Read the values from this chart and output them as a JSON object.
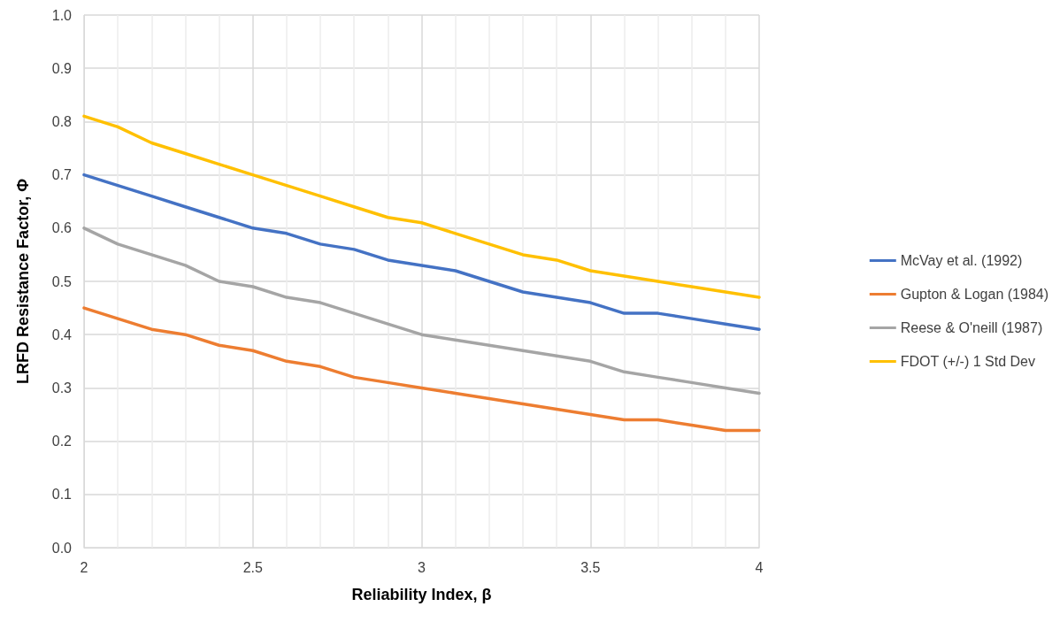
{
  "chart_data": {
    "type": "line",
    "xlabel": "Reliability Index, β",
    "ylabel": "LRFD Resistance Factor, Φ",
    "x": [
      2,
      2.1,
      2.2,
      2.3,
      2.4,
      2.5,
      2.6,
      2.7,
      2.8,
      2.9,
      3,
      3.1,
      3.2,
      3.3,
      3.4,
      3.5,
      3.6,
      3.7,
      3.8,
      3.9,
      4
    ],
    "series": [
      {
        "name": "McVay et al. (1992)",
        "color": "#4472c4",
        "values": [
          0.7,
          0.68,
          0.66,
          0.64,
          0.62,
          0.6,
          0.59,
          0.57,
          0.56,
          0.54,
          0.53,
          0.52,
          0.5,
          0.48,
          0.47,
          0.46,
          0.44,
          0.44,
          0.43,
          0.42,
          0.41
        ]
      },
      {
        "name": "Gupton & Logan (1984)",
        "color": "#ed7d31",
        "values": [
          0.45,
          0.43,
          0.41,
          0.4,
          0.38,
          0.37,
          0.35,
          0.34,
          0.32,
          0.31,
          0.3,
          0.29,
          0.28,
          0.27,
          0.26,
          0.25,
          0.24,
          0.24,
          0.23,
          0.22,
          0.22
        ]
      },
      {
        "name": "Reese & O'neill (1987)",
        "color": "#a5a5a5",
        "values": [
          0.6,
          0.57,
          0.55,
          0.53,
          0.5,
          0.49,
          0.47,
          0.46,
          0.44,
          0.42,
          0.4,
          0.39,
          0.38,
          0.37,
          0.36,
          0.35,
          0.33,
          0.32,
          0.31,
          0.3,
          0.29
        ]
      },
      {
        "name": "FDOT (+/-) 1 Std Dev",
        "color": "#ffc000",
        "values": [
          0.81,
          0.79,
          0.76,
          0.74,
          0.72,
          0.7,
          0.68,
          0.66,
          0.64,
          0.62,
          0.61,
          0.59,
          0.57,
          0.55,
          0.54,
          0.52,
          0.51,
          0.5,
          0.49,
          0.48,
          0.47
        ]
      }
    ],
    "xlim": [
      2,
      4
    ],
    "xticks": [
      2,
      2.5,
      3,
      3.5,
      4
    ],
    "ylim": [
      0,
      1
    ],
    "yticks": [
      {
        "value": 0,
        "label": "0.0"
      },
      0.1,
      0.2,
      0.3,
      0.4,
      0.5,
      0.6,
      0.7,
      0.8,
      0.9,
      {
        "value": 1,
        "label": "1.0"
      }
    ],
    "grid": true,
    "legend": "right",
    "marker": "none",
    "line_style": "solid"
  }
}
